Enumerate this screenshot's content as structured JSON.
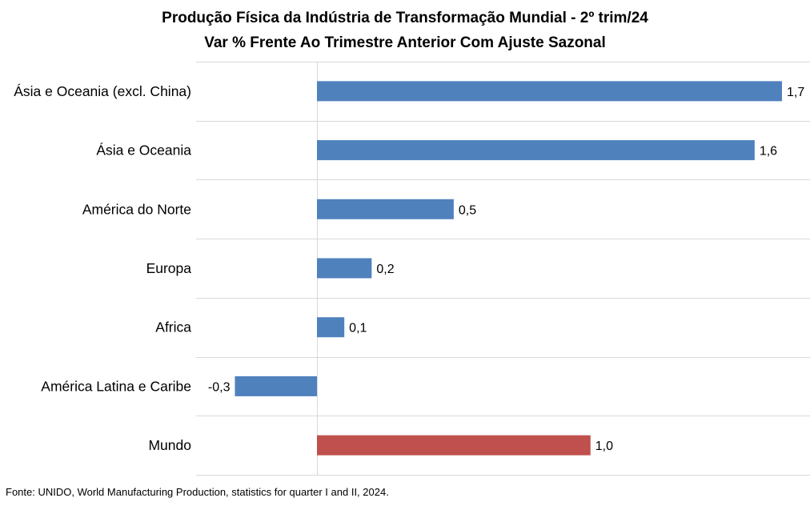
{
  "chart_data": {
    "type": "bar",
    "orientation": "horizontal",
    "title": "Produção Física da Indústria de Transformação Mundial - 2º trim/24",
    "subtitle": "Var % Frente Ao Trimestre Anterior Com Ajuste Sazonal",
    "categories": [
      "Ásia e Oceania (excl. China)",
      "Ásia e Oceania",
      "América do Norte",
      "Europa",
      "Africa",
      "América Latina e Caribe",
      "Mundo"
    ],
    "values": [
      1.7,
      1.6,
      0.5,
      0.2,
      0.1,
      -0.3,
      1.0
    ],
    "value_labels": [
      "1,7",
      "1,6",
      "0,5",
      "0,2",
      "0,1",
      "-0,3",
      "1,0"
    ],
    "colors": [
      "#4f81bd",
      "#4f81bd",
      "#4f81bd",
      "#4f81bd",
      "#4f81bd",
      "#4f81bd",
      "#c0504d"
    ],
    "grid": true,
    "legend": "none"
  },
  "footer": {
    "source": "Fonte: UNIDO, World Manufacturing Production,  statistics for quarter  I and II, 2024."
  }
}
